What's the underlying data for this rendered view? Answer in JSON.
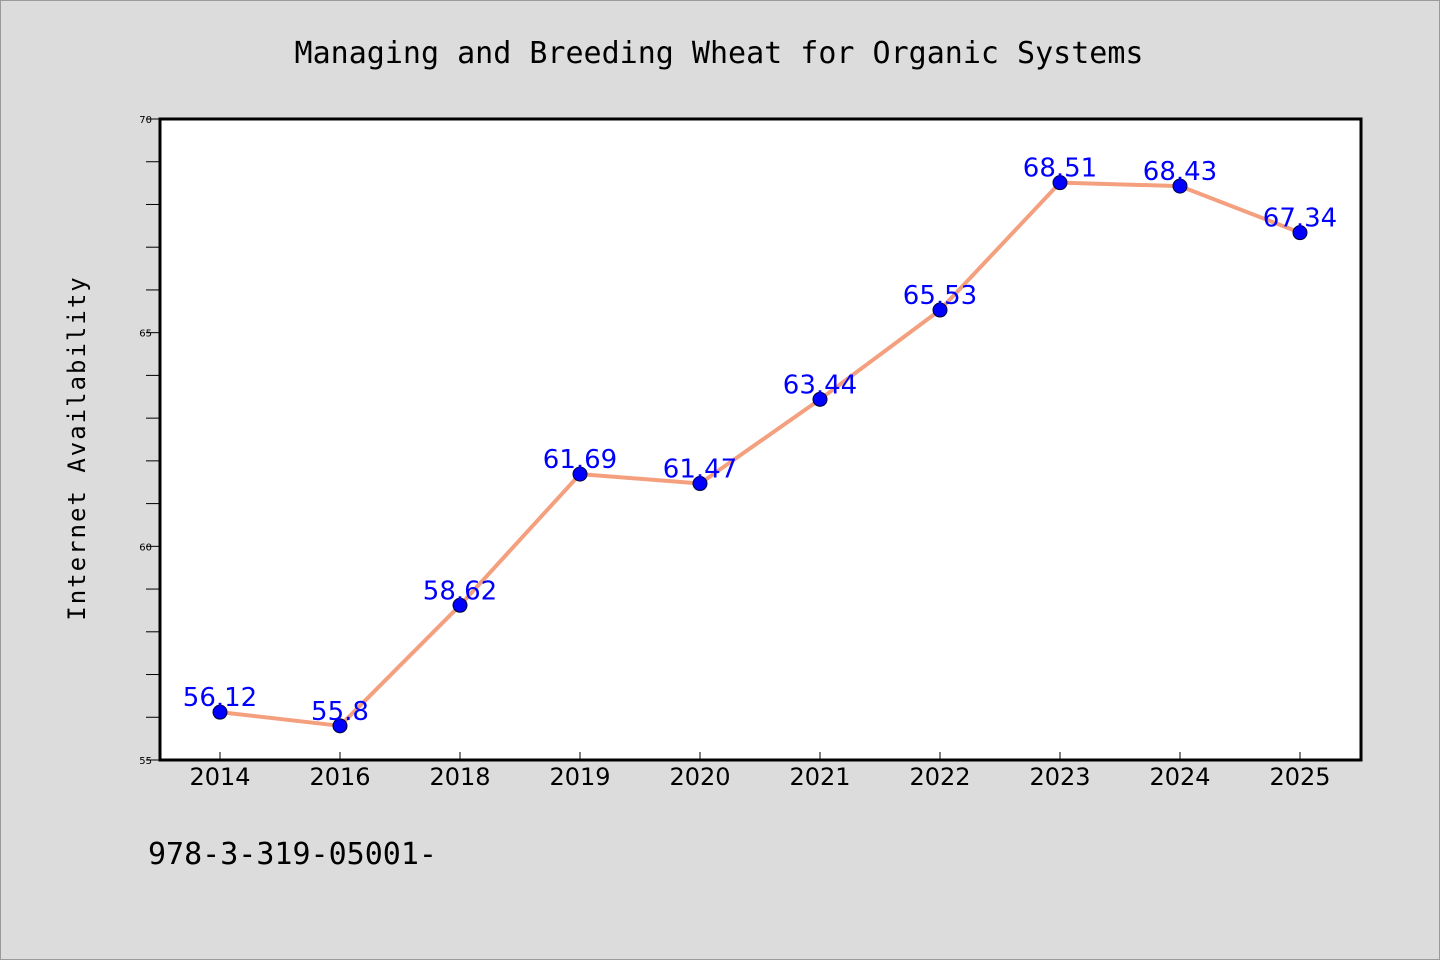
{
  "chart_data": {
    "type": "line",
    "title": "Managing and Breeding Wheat for Organic Systems",
    "xlabel": "",
    "ylabel": "Internet Availability",
    "categories": [
      "2014",
      "2016",
      "2018",
      "2019",
      "2020",
      "2021",
      "2022",
      "2023",
      "2024",
      "2025"
    ],
    "series": [
      {
        "values": [
          56.12,
          55.8,
          58.62,
          61.69,
          61.47,
          63.44,
          65.53,
          68.51,
          68.43,
          67.34
        ],
        "data_labels": [
          "56.12",
          "55.8",
          "58.62",
          "61.69",
          "61.47",
          "63.44",
          "65.53",
          "68.51",
          "68.43",
          "67.34"
        ],
        "line_color": "#f4a07f",
        "marker_color": "#0000ff"
      }
    ],
    "ylim": [
      55,
      70
    ],
    "yticks": [
      "55",
      "60",
      "65",
      "70"
    ],
    "grid": false,
    "legend": "none",
    "label_color": "#0000ff"
  },
  "footnote": "978-3-319-05001-",
  "colors": {
    "background": "#dcdcdc",
    "plot_background": "#ffffff",
    "line": "#f4a07f",
    "marker": "#0000ff"
  }
}
